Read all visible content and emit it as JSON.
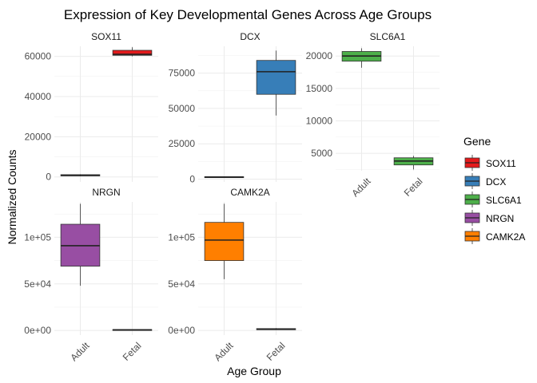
{
  "chart_data": {
    "type": "boxplot",
    "title": "Expression of Key Developmental Genes Across Age Groups",
    "xlabel": "Age Group",
    "ylabel": "Normalized Counts",
    "categories": [
      "Adult",
      "Fetal"
    ],
    "grid": true,
    "legend": {
      "title": "Gene",
      "position": "right",
      "entries": [
        {
          "label": "SOX11",
          "color": "#E41A1C"
        },
        {
          "label": "DCX",
          "color": "#377EB8"
        },
        {
          "label": "SLC6A1",
          "color": "#4DAF4A"
        },
        {
          "label": "NRGN",
          "color": "#984EA3"
        },
        {
          "label": "CAMK2A",
          "color": "#FF7F00"
        }
      ]
    },
    "panels": [
      {
        "gene": "SOX11",
        "color": "#E41A1C",
        "ylim": [
          -2500,
          65000
        ],
        "ticks": [
          0,
          20000,
          40000,
          60000
        ],
        "tick_labels": [
          "0",
          "20000",
          "40000",
          "60000"
        ],
        "show_x_ticks": false,
        "boxes": [
          {
            "group": "Adult",
            "min": 300,
            "q1": 500,
            "median": 800,
            "q3": 1100,
            "max": 1300
          },
          {
            "group": "Fetal",
            "min": 60000,
            "q1": 60500,
            "median": 61000,
            "q3": 63000,
            "max": 64500
          }
        ]
      },
      {
        "gene": "DCX",
        "color": "#377EB8",
        "ylim": [
          -2000,
          94000
        ],
        "ticks": [
          0,
          25000,
          50000,
          75000
        ],
        "tick_labels": [
          "0",
          "25000",
          "50000",
          "75000"
        ],
        "show_x_ticks": false,
        "boxes": [
          {
            "group": "Adult",
            "min": 1100,
            "q1": 1300,
            "median": 1500,
            "q3": 1700,
            "max": 1900
          },
          {
            "group": "Fetal",
            "min": 45000,
            "q1": 60000,
            "median": 76000,
            "q3": 84000,
            "max": 91000
          }
        ]
      },
      {
        "gene": "SLC6A1",
        "color": "#4DAF4A",
        "ylim": [
          2300,
          21500
        ],
        "ticks": [
          5000,
          10000,
          15000,
          20000
        ],
        "tick_labels": [
          "5000",
          "10000",
          "15000",
          "20000"
        ],
        "show_x_ticks": true,
        "boxes": [
          {
            "group": "Adult",
            "min": 18200,
            "q1": 19200,
            "median": 20000,
            "q3": 20700,
            "max": 21200
          },
          {
            "group": "Fetal",
            "min": 2500,
            "q1": 3200,
            "median": 3800,
            "q3": 4300,
            "max": 4600
          }
        ]
      },
      {
        "gene": "NRGN",
        "color": "#984EA3",
        "ylim": [
          -5000,
          138000
        ],
        "ticks": [
          0,
          50000,
          100000
        ],
        "tick_labels": [
          "0e+00",
          "5e+04",
          "1e+05"
        ],
        "show_x_ticks": true,
        "boxes": [
          {
            "group": "Adult",
            "min": 48000,
            "q1": 69000,
            "median": 91000,
            "q3": 114000,
            "max": 136000
          },
          {
            "group": "Fetal",
            "min": 200,
            "q1": 500,
            "median": 700,
            "q3": 1000,
            "max": 1200
          }
        ]
      },
      {
        "gene": "CAMK2A",
        "color": "#FF7F00",
        "ylim": [
          -5000,
          138000
        ],
        "ticks": [
          0,
          50000,
          100000
        ],
        "tick_labels": [
          "0e+00",
          "5e+04",
          "1e+05"
        ],
        "show_x_ticks": true,
        "boxes": [
          {
            "group": "Adult",
            "min": 55000,
            "q1": 75000,
            "median": 97000,
            "q3": 116000,
            "max": 136000
          },
          {
            "group": "Fetal",
            "min": 500,
            "q1": 800,
            "median": 1300,
            "q3": 2000,
            "max": 2500
          }
        ]
      }
    ]
  }
}
